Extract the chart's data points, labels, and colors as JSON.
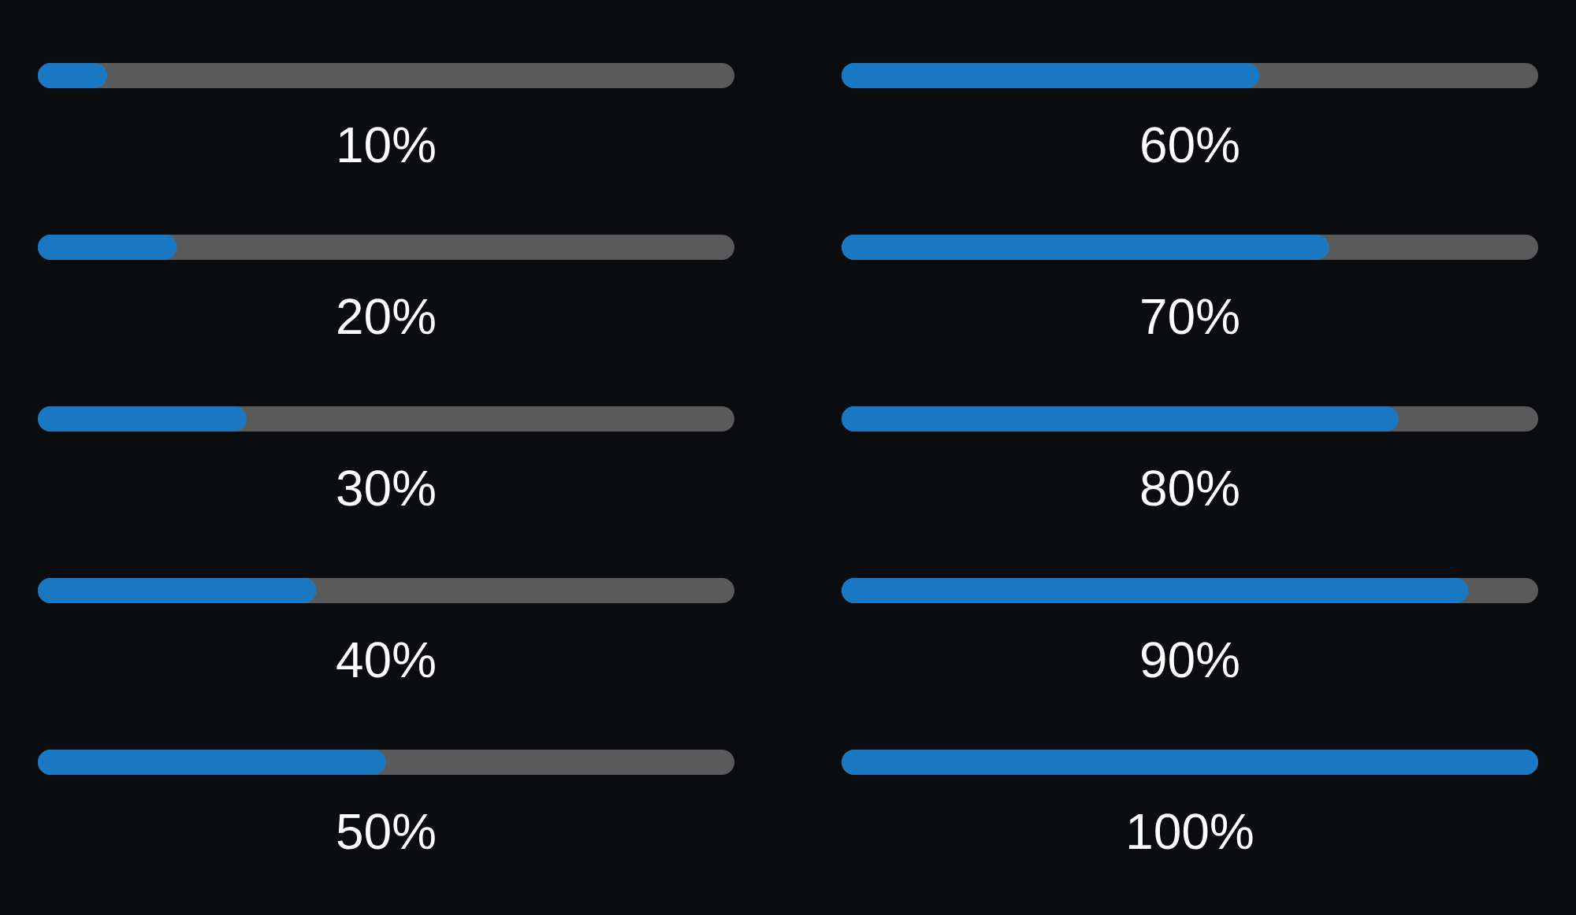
{
  "chart_data": [
    {
      "type": "bar",
      "orientation": "horizontal",
      "categories": [
        null,
        null,
        null,
        null,
        null
      ],
      "values": [
        10,
        20,
        30,
        40,
        50
      ],
      "value_labels": [
        "10%",
        "20%",
        "30%",
        "40%",
        "50%"
      ],
      "color": "#1a78c2",
      "xlim": [
        0,
        100
      ],
      "tick_labels": false
    },
    {
      "type": "bar",
      "orientation": "horizontal",
      "categories": [
        null,
        null,
        null,
        null,
        null
      ],
      "values": [
        60,
        70,
        80,
        90,
        100
      ],
      "value_labels": [
        "60%",
        "70%",
        "80%",
        "90%",
        "100%"
      ],
      "color": "#1a78c2",
      "xlim": [
        0,
        100
      ],
      "tick_labels": false
    }
  ]
}
